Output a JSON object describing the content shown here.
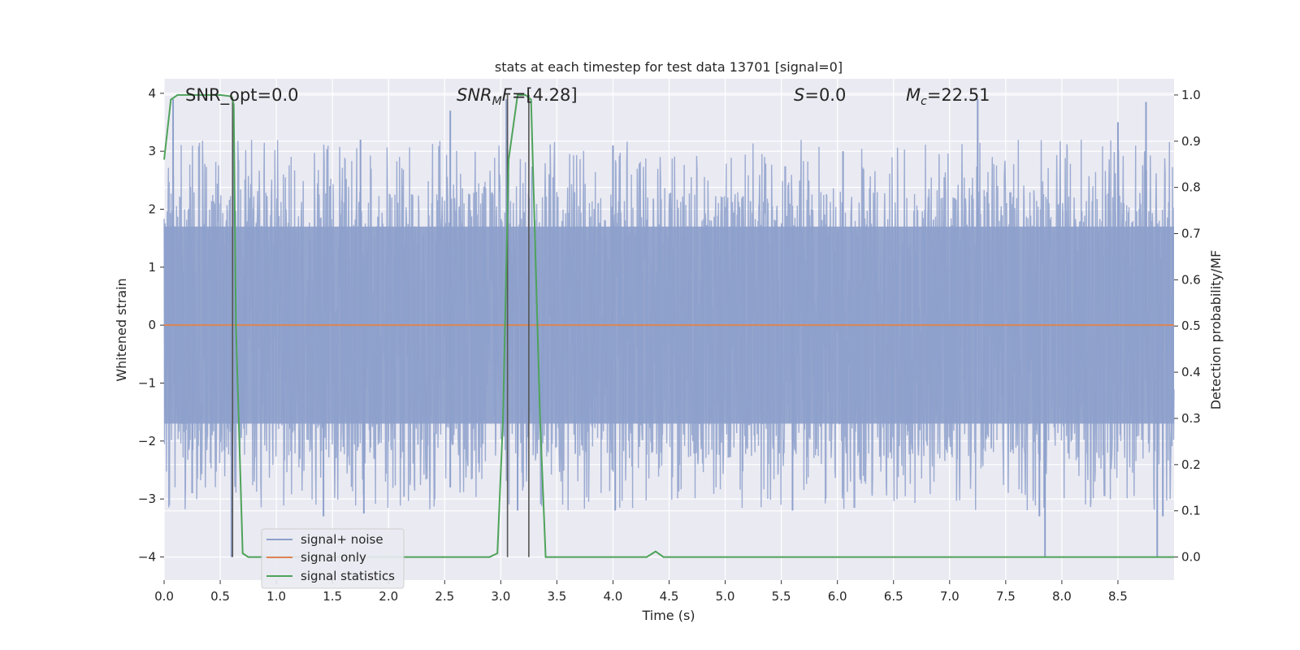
{
  "chart_data": {
    "type": "line",
    "title": "stats at each timestep for test data 13701 [signal=0]",
    "xlabel": "Time (s)",
    "ylabel_left": "Whitened strain",
    "ylabel_right": "Detection probability/MF",
    "xlim": [
      0.0,
      9.0
    ],
    "ylim_left": [
      -4.4,
      4.25
    ],
    "ylim_right": [
      -0.05,
      1.035
    ],
    "x_ticks": [
      "0.0",
      "0.5",
      "1.0",
      "1.5",
      "2.0",
      "2.5",
      "3.0",
      "3.5",
      "4.0",
      "4.5",
      "5.0",
      "5.5",
      "6.0",
      "6.5",
      "7.0",
      "7.5",
      "8.0",
      "8.5"
    ],
    "y_ticks_left": [
      "4",
      "3",
      "2",
      "1",
      "0",
      "−1",
      "−2",
      "−3",
      "−4"
    ],
    "y_ticks_right": [
      "1.0",
      "0.9",
      "0.8",
      "0.7",
      "0.6",
      "0.5",
      "0.4",
      "0.3",
      "0.2",
      "0.1",
      "0.0"
    ],
    "grid": true,
    "annotations": {
      "snr_opt": "SNR_opt=0.0",
      "snr_mf": "=[4.28]",
      "s_value": "=0.0",
      "mc_value": "=22.51"
    },
    "series": [
      {
        "name": "signal+ noise",
        "axis": "left",
        "color": "#8da0cb",
        "description_range": [
          -4.0,
          4.0
        ],
        "typical_envelope": [
          -1.7,
          1.7
        ],
        "peaks": [
          {
            "x": 0.08,
            "y": 3.9
          },
          {
            "x": 0.62,
            "y": 3.75
          },
          {
            "x": 2.55,
            "y": 3.7
          },
          {
            "x": 7.25,
            "y": 3.9
          },
          {
            "x": 8.75,
            "y": 3.85
          },
          {
            "x": 3.05,
            "y": 3.9
          },
          {
            "x": 1.75,
            "y": 3.2
          },
          {
            "x": 4.0,
            "y": 3.1
          },
          {
            "x": 6.05,
            "y": 3.0
          },
          {
            "x": 8.5,
            "y": 3.5
          }
        ],
        "troughs": [
          {
            "x": 0.6,
            "y": -4.0
          },
          {
            "x": 7.85,
            "y": -4.0
          },
          {
            "x": 8.85,
            "y": -4.0
          },
          {
            "x": 1.42,
            "y": -3.3
          },
          {
            "x": 1.78,
            "y": -3.25
          },
          {
            "x": 4.02,
            "y": -3.2
          },
          {
            "x": 3.15,
            "y": -3.2
          },
          {
            "x": 5.6,
            "y": -3.2
          },
          {
            "x": 7.8,
            "y": -3.3
          },
          {
            "x": 8.9,
            "y": -3.3
          },
          {
            "x": 0.25,
            "y": -2.9
          },
          {
            "x": 2.55,
            "y": -2.8
          }
        ]
      },
      {
        "name": "signal only",
        "axis": "left",
        "color": "#dd8452",
        "x": [
          0.0,
          9.0
        ],
        "y": [
          0.0,
          0.0
        ]
      },
      {
        "name": "signal statistics",
        "axis": "right",
        "color": "#4ea35a",
        "x": [
          0.0,
          0.06,
          0.12,
          0.3,
          0.5,
          0.6,
          0.62,
          0.64,
          0.7,
          0.75,
          0.8,
          1.0,
          2.5,
          2.9,
          2.97,
          3.02,
          3.07,
          3.15,
          3.22,
          3.27,
          3.35,
          3.4,
          3.5,
          4.0,
          4.3,
          4.38,
          4.45,
          5.0,
          7.0,
          9.0
        ],
        "y": [
          0.86,
          0.99,
          1.0,
          1.0,
          1.0,
          0.997,
          0.98,
          0.5,
          0.008,
          0.0,
          0.0,
          0.0,
          0.0,
          0.0,
          0.008,
          0.3,
          0.86,
          1.0,
          1.0,
          0.99,
          0.3,
          0.0,
          0.0,
          0.0,
          0.0,
          0.012,
          0.0,
          0.0,
          0.0,
          0.0
        ]
      }
    ],
    "vertical_lines": [
      {
        "x": 0.61,
        "y_bottom": 0.0,
        "y_top": 0.995
      },
      {
        "x": 3.06,
        "y_bottom": 0.0,
        "y_top": 1.0
      },
      {
        "x": 3.25,
        "y_bottom": 0.0,
        "y_top": 1.0
      }
    ],
    "legend": {
      "placement": "lower-left",
      "entries": [
        "signal+ noise",
        "signal only",
        "signal statistics"
      ]
    },
    "colors": {
      "background": "#eaeaf2",
      "grid": "#ffffff",
      "vline": "#555555"
    }
  }
}
